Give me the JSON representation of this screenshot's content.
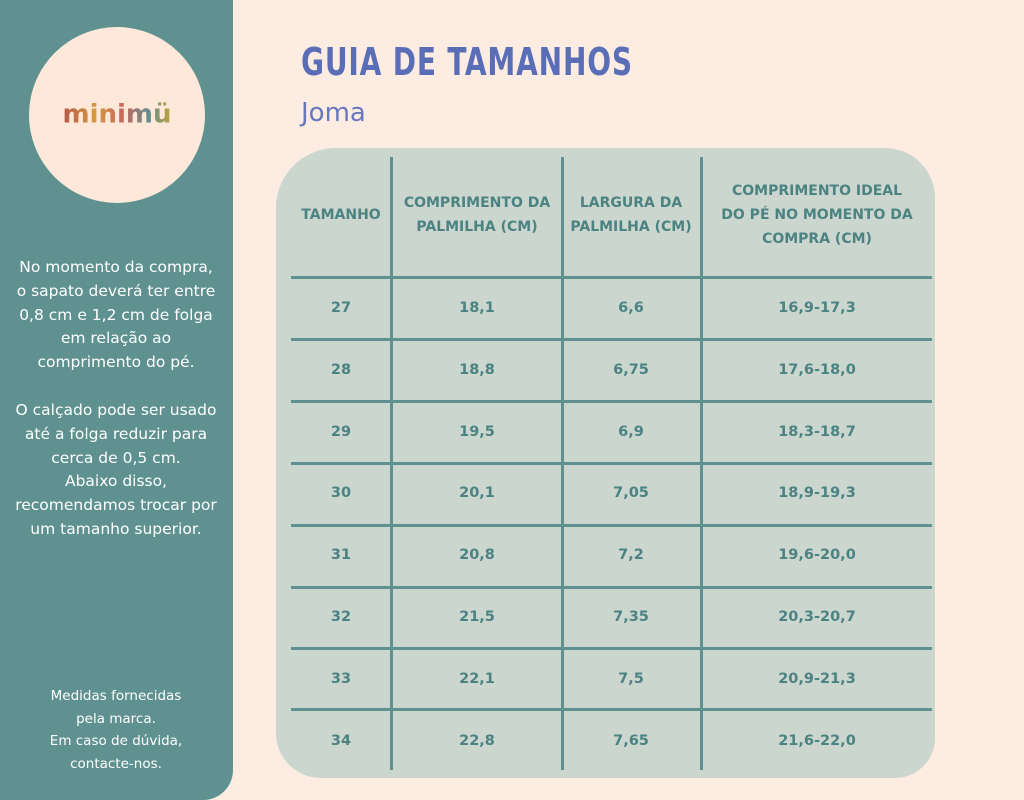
{
  "logo": "minimü",
  "sidebar": {
    "paragraphs": [
      [
        "No momento da compra,",
        "o sapato deverá ter entre",
        "0,8 cm e 1,2 cm de folga",
        "em relação ao",
        "comprimento do pé."
      ],
      [
        "O calçado pode ser usado",
        "até a folga reduzir para",
        "cerca de 0,5 cm.",
        "Abaixo disso,",
        "recomendamos trocar por",
        "um tamanho superior."
      ]
    ],
    "footer": [
      "Medidas fornecidas",
      "pela marca.",
      "Em caso de dúvida,",
      "contacte-nos."
    ]
  },
  "header": {
    "title": "GUIA DE TAMANHOS",
    "subtitle": "Joma"
  },
  "table": {
    "columns": [
      [
        "TAMANHO"
      ],
      [
        "COMPRIMENTO DA",
        "PALMILHA (CM)"
      ],
      [
        "LARGURA DA",
        "PALMILHA (CM)"
      ],
      [
        "COMPRIMENTO IDEAL",
        "DO PÉ NO MOMENTO DA",
        "COMPRA (CM)"
      ]
    ],
    "rows": [
      [
        "27",
        "18,1",
        "6,6",
        "16,9-17,3"
      ],
      [
        "28",
        "18,8",
        "6,75",
        "17,6-18,0"
      ],
      [
        "29",
        "19,5",
        "6,9",
        "18,3-18,7"
      ],
      [
        "30",
        "20,1",
        "7,05",
        "18,9-19,3"
      ],
      [
        "31",
        "20,8",
        "7,2",
        "19,6-20,0"
      ],
      [
        "32",
        "21,5",
        "7,35",
        "20,3-20,7"
      ],
      [
        "33",
        "22,1",
        "7,5",
        "20,9-21,3"
      ],
      [
        "34",
        "22,8",
        "7,65",
        "21,6-22,0"
      ]
    ]
  }
}
